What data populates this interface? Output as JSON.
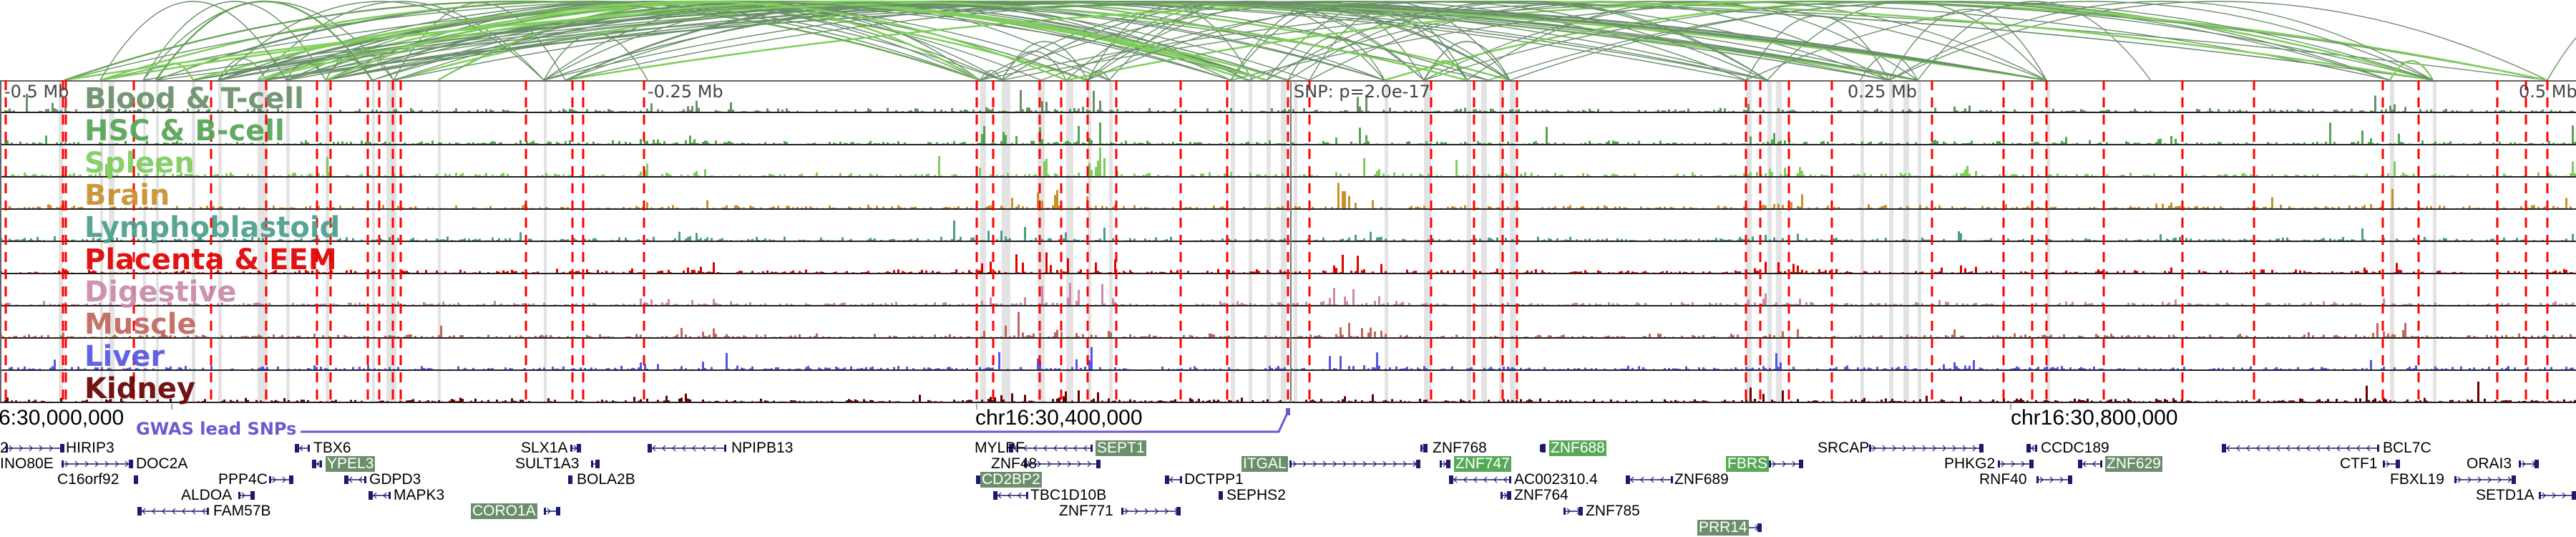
{
  "header": {
    "scale_labels": [
      "-0.5 Mb",
      "-0.25 Mb",
      "0.25 Mb",
      "0.5 Mb"
    ],
    "snp_label": "SNP: p=2.0e-17"
  },
  "colors": {
    "arc": "#6a8f6a",
    "arc_strong": "#7fcf5a",
    "peak_line": "#ff0000",
    "band": "#e3e3e3",
    "gwas": "#6a5acd",
    "gene": "#1a1a6e",
    "highlight_dark": "#6a8f6a",
    "highlight_bright": "#57a957"
  },
  "tracks": [
    {
      "label": "Blood & T-cell",
      "color": "#6a8f6a"
    },
    {
      "label": "HSC & B-cell",
      "color": "#55a455"
    },
    {
      "label": "Spleen",
      "color": "#7fcc5f"
    },
    {
      "label": "Brain",
      "color": "#c8902c"
    },
    {
      "label": "Lymphoblastoid",
      "color": "#4a9e8c"
    },
    {
      "label": "Placenta & EEM",
      "color": "#e00000"
    },
    {
      "label": "Digestive",
      "color": "#c98aab"
    },
    {
      "label": "Muscle",
      "color": "#c0675e"
    },
    {
      "label": "Liver",
      "color": "#5555e6"
    },
    {
      "label": "Kidney",
      "color": "#680000"
    }
  ],
  "axis": {
    "coords": [
      "6:30,000,000",
      "chr16:30,400,000",
      "chr16:30,800,000"
    ]
  },
  "gwas": {
    "label": "GWAS lead SNPs"
  },
  "genes": [
    {
      "name": "2",
      "hl": ""
    },
    {
      "name": "HIRIP3",
      "hl": ""
    },
    {
      "name": "TBX6",
      "hl": ""
    },
    {
      "name": "SLX1A",
      "hl": ""
    },
    {
      "name": "NPIPB13",
      "hl": ""
    },
    {
      "name": "MYLPF",
      "hl": ""
    },
    {
      "name": "SEPT1",
      "hl": "dark"
    },
    {
      "name": "ZNF768",
      "hl": ""
    },
    {
      "name": "ZNF688",
      "hl": "bright"
    },
    {
      "name": "SRCAP",
      "hl": ""
    },
    {
      "name": "CCDC189",
      "hl": ""
    },
    {
      "name": "BCL7C",
      "hl": ""
    },
    {
      "name": "INO80E",
      "hl": ""
    },
    {
      "name": "DOC2A",
      "hl": ""
    },
    {
      "name": "YPEL3",
      "hl": "dark"
    },
    {
      "name": "SULT1A3",
      "hl": ""
    },
    {
      "name": "ZNF48",
      "hl": ""
    },
    {
      "name": "ITGAL",
      "hl": "dark"
    },
    {
      "name": "ZNF747",
      "hl": "bright"
    },
    {
      "name": "FBRS",
      "hl": "bright"
    },
    {
      "name": "PHKG2",
      "hl": ""
    },
    {
      "name": "ZNF629",
      "hl": "dark"
    },
    {
      "name": "CTF1",
      "hl": ""
    },
    {
      "name": "ORAI3",
      "hl": ""
    },
    {
      "name": "C16orf92",
      "hl": ""
    },
    {
      "name": "PPP4C",
      "hl": ""
    },
    {
      "name": "GDPD3",
      "hl": ""
    },
    {
      "name": "BOLA2B",
      "hl": ""
    },
    {
      "name": "CD2BP2",
      "hl": "dark"
    },
    {
      "name": "DCTPP1",
      "hl": ""
    },
    {
      "name": "AC002310.4",
      "hl": ""
    },
    {
      "name": "ZNF689",
      "hl": ""
    },
    {
      "name": "RNF40",
      "hl": ""
    },
    {
      "name": "FBXL19",
      "hl": ""
    },
    {
      "name": "ALDOA",
      "hl": ""
    },
    {
      "name": "MAPK3",
      "hl": ""
    },
    {
      "name": "TBC1D10B",
      "hl": ""
    },
    {
      "name": "SEPHS2",
      "hl": ""
    },
    {
      "name": "ZNF764",
      "hl": ""
    },
    {
      "name": "SETD1A",
      "hl": ""
    },
    {
      "name": "FAM57B",
      "hl": ""
    },
    {
      "name": "CORO1A",
      "hl": "dark"
    },
    {
      "name": "ZNF771",
      "hl": ""
    },
    {
      "name": "ZNF785",
      "hl": ""
    },
    {
      "name": "PRR14",
      "hl": "dark"
    }
  ]
}
